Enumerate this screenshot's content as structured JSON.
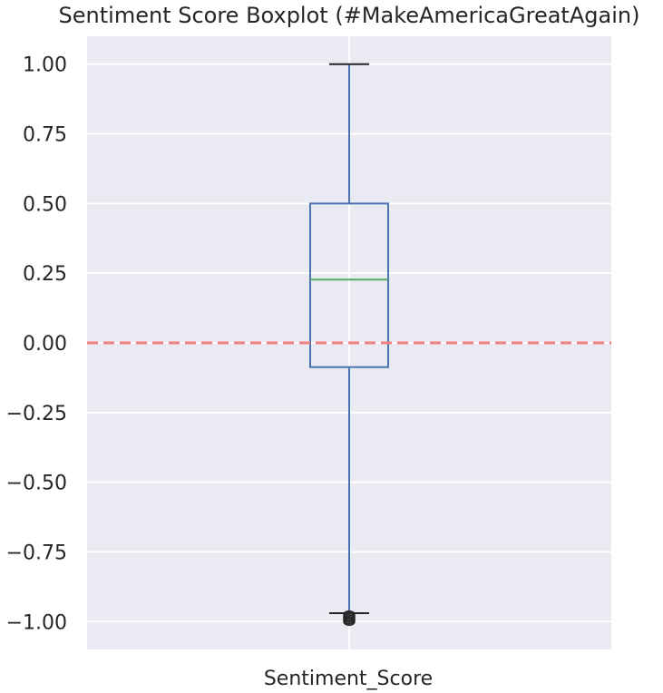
{
  "chart_data": {
    "type": "boxplot",
    "title": "Sentiment Score Boxplot (#MakeAmericaGreatAgain)",
    "xlabel": "Sentiment_Score",
    "ylabel": "",
    "categories": [
      "Sentiment_Score"
    ],
    "ylim": [
      -1.1,
      1.1
    ],
    "yticks": [
      1.0,
      0.75,
      0.5,
      0.25,
      0.0,
      -0.25,
      -0.5,
      -0.75,
      -1.0
    ],
    "ytick_labels": [
      "1.00",
      "0.75",
      "0.50",
      "0.25",
      "0.00",
      "−0.25",
      "−0.50",
      "−0.75",
      "−1.00"
    ],
    "box": {
      "whisker_high": 1.0,
      "q3": 0.5,
      "median": 0.227,
      "q1": -0.087,
      "whisker_low": -0.97,
      "outliers": [
        -0.975,
        -0.98,
        -0.985,
        -0.99,
        -0.995,
        -1.0
      ]
    },
    "reference_line": {
      "y": 0.0,
      "style": "dashed",
      "color": "#f08080"
    },
    "grid": true,
    "colors": {
      "background": "#eaeaf2",
      "grid": "#ffffff",
      "box": "#4c72b0",
      "median": "#55a868",
      "caps": "#262626",
      "outlier": "#262626",
      "reference": "#f08080"
    }
  }
}
